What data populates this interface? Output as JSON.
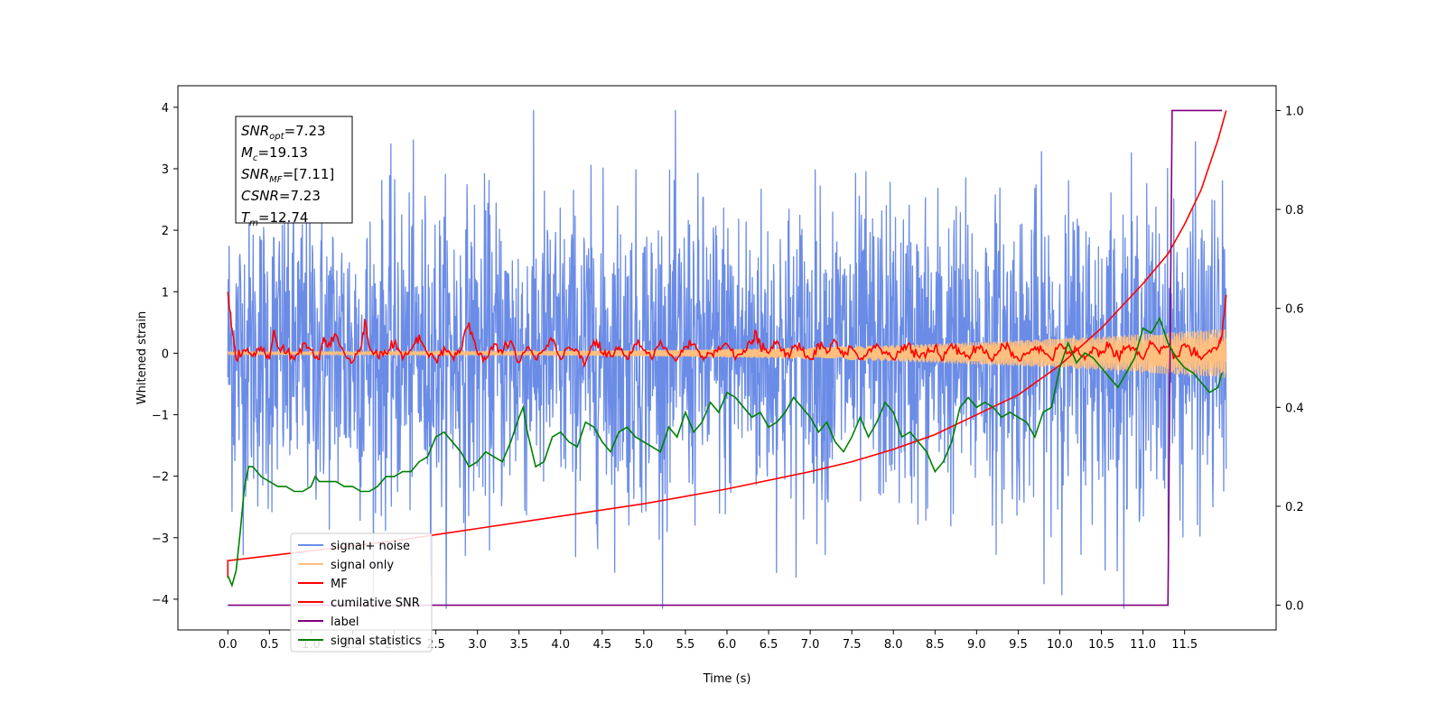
{
  "chart_data": {
    "type": "line",
    "title": "",
    "xlabel": "Time (s)",
    "ylabel": "Whitened strain",
    "xlim": [
      -0.6,
      12.6
    ],
    "ylim": [
      -4.5,
      4.35
    ],
    "y2lim": [
      -0.05,
      1.05
    ],
    "xticks": [
      "0.0",
      "0.5",
      "1.0",
      "1.5",
      "2.0",
      "2.5",
      "3.0",
      "3.5",
      "4.0",
      "4.5",
      "5.0",
      "5.5",
      "6.0",
      "6.5",
      "7.0",
      "7.5",
      "8.0",
      "8.5",
      "9.0",
      "9.5",
      "10.0",
      "10.5",
      "11.0",
      "11.5"
    ],
    "yticks": [
      "4",
      "3",
      "2",
      "1",
      "0",
      "−1",
      "−2",
      "−3",
      "−4"
    ],
    "y2ticks": [
      "1.0",
      "0.8",
      "0.6",
      "0.4",
      "0.2",
      "0.0"
    ],
    "annotation": {
      "lines": [
        {
          "base": "SNR",
          "sub": "opt",
          "value": "=7.23"
        },
        {
          "base": "M",
          "sub": "c",
          "value": "=19.13"
        },
        {
          "base": "SNR",
          "sub": "MF",
          "value": "=[7.11]"
        },
        {
          "base": "CSNR",
          "sub": "",
          "value": "=7.23"
        },
        {
          "base": "T",
          "sub": "m",
          "value": "=12.74"
        }
      ]
    },
    "legend": {
      "position": "lower-left",
      "entries": [
        {
          "label": "signal+ noise",
          "color": "#6b8ce6"
        },
        {
          "label": "signal only",
          "color": "#ffbf7f"
        },
        {
          "label": "MF",
          "color": "#ff0000"
        },
        {
          "label": "cumilative SNR",
          "color": "#ff0000"
        },
        {
          "label": "label",
          "color": "#800080"
        },
        {
          "label": "signal statistics",
          "color": "#008000"
        }
      ]
    },
    "series": [
      {
        "name": "signal+ noise",
        "axis": "left",
        "color": "#6b8ce6",
        "x_range": [
          0.0,
          12.0
        ],
        "mean": 0.0,
        "spread": 1.25,
        "min": -4.15,
        "max": 3.95
      },
      {
        "name": "signal only",
        "axis": "left",
        "color": "#ffbf7f",
        "x_range": [
          0.0,
          12.0
        ],
        "amplitude_start": 0.02,
        "amplitude_end": 0.4
      },
      {
        "name": "MF",
        "axis": "left",
        "color": "#ff0000",
        "x": [
          0.0,
          0.05,
          0.1,
          0.2,
          0.3,
          0.4,
          0.5,
          0.55,
          0.6,
          0.7,
          0.8,
          0.9,
          1.0,
          1.1,
          1.15,
          1.2,
          1.3,
          1.4,
          1.5,
          1.6,
          1.65,
          1.7,
          1.8,
          1.9,
          2.0,
          2.1,
          2.2,
          2.3,
          2.4,
          2.5,
          2.6,
          2.7,
          2.8,
          2.9,
          3.0,
          3.1,
          3.2,
          3.3,
          3.4,
          3.5,
          3.6,
          3.7,
          3.8,
          3.9,
          4.0,
          4.1,
          4.2,
          4.3,
          4.4,
          4.5,
          4.6,
          4.7,
          4.8,
          4.9,
          5.0,
          5.1,
          5.2,
          5.3,
          5.4,
          5.5,
          5.6,
          5.7,
          5.8,
          5.9,
          6.0,
          6.1,
          6.2,
          6.3,
          6.35,
          6.4,
          6.5,
          6.6,
          6.7,
          6.8,
          6.9,
          7.0,
          7.1,
          7.2,
          7.3,
          7.4,
          7.5,
          7.6,
          7.7,
          7.8,
          7.9,
          8.0,
          8.1,
          8.2,
          8.3,
          8.4,
          8.5,
          8.6,
          8.7,
          8.8,
          8.9,
          9.0,
          9.1,
          9.2,
          9.3,
          9.4,
          9.5,
          9.6,
          9.7,
          9.8,
          9.9,
          10.0,
          10.1,
          10.2,
          10.3,
          10.4,
          10.5,
          10.6,
          10.7,
          10.8,
          10.9,
          11.0,
          11.1,
          11.2,
          11.3,
          11.4,
          11.5,
          11.6,
          11.7,
          11.8,
          11.9,
          11.95,
          12.0
        ],
        "y": [
          1.0,
          0.4,
          -0.1,
          0.05,
          -0.05,
          0.1,
          -0.1,
          0.35,
          0.1,
          0.0,
          -0.1,
          0.15,
          0.05,
          -0.1,
          0.25,
          0.1,
          0.3,
          0.0,
          -0.15,
          0.1,
          0.55,
          0.1,
          -0.05,
          0.0,
          0.15,
          -0.1,
          0.05,
          0.3,
          0.0,
          -0.1,
          0.1,
          -0.05,
          0.05,
          0.5,
          0.0,
          -0.1,
          0.15,
          0.0,
          0.2,
          -0.15,
          0.1,
          -0.1,
          0.05,
          0.2,
          -0.1,
          0.1,
          0.05,
          -0.15,
          0.2,
          0.0,
          -0.05,
          0.1,
          -0.1,
          0.15,
          0.05,
          -0.1,
          0.2,
          0.0,
          -0.1,
          0.1,
          0.15,
          -0.05,
          0.0,
          0.1,
          0.15,
          -0.1,
          0.05,
          0.15,
          0.35,
          0.1,
          0.0,
          0.2,
          -0.05,
          0.1,
          0.05,
          -0.1,
          0.15,
          0.0,
          0.2,
          -0.05,
          0.1,
          -0.1,
          0.05,
          0.15,
          0.0,
          -0.1,
          0.1,
          0.15,
          -0.05,
          0.0,
          0.1,
          -0.1,
          0.15,
          0.0,
          -0.05,
          0.1,
          0.0,
          -0.1,
          0.15,
          0.05,
          -0.1,
          0.0,
          0.1,
          0.05,
          -0.1,
          0.15,
          0.0,
          0.05,
          -0.1,
          0.1,
          0.0,
          0.15,
          -0.05,
          0.1,
          0.05,
          -0.1,
          0.15,
          0.0,
          0.1,
          -0.05,
          0.15,
          0.0,
          -0.1,
          0.05,
          0.1,
          0.3,
          0.95
        ]
      },
      {
        "name": "cumilative SNR",
        "axis": "right",
        "color": "#ff0000",
        "x": [
          0.0,
          0.0,
          0.5,
          1.0,
          2.0,
          3.0,
          4.0,
          5.0,
          6.0,
          7.0,
          7.5,
          8.0,
          8.5,
          9.0,
          9.5,
          10.0,
          10.5,
          11.0,
          11.3,
          11.5,
          11.7,
          11.9,
          12.0
        ],
        "y": [
          0.055,
          0.09,
          0.1,
          0.11,
          0.13,
          0.155,
          0.18,
          0.205,
          0.235,
          0.27,
          0.29,
          0.315,
          0.345,
          0.385,
          0.425,
          0.485,
          0.56,
          0.65,
          0.71,
          0.77,
          0.84,
          0.94,
          1.0
        ]
      },
      {
        "name": "label",
        "axis": "right",
        "color": "#800080",
        "x": [
          0.0,
          11.3,
          11.35,
          11.95
        ],
        "y": [
          0.0,
          0.0,
          1.0,
          1.0
        ]
      },
      {
        "name": "signal statistics",
        "axis": "right",
        "color": "#008000",
        "x": [
          0.0,
          0.05,
          0.1,
          0.15,
          0.2,
          0.25,
          0.3,
          0.35,
          0.4,
          0.5,
          0.6,
          0.7,
          0.8,
          0.9,
          1.0,
          1.05,
          1.1,
          1.2,
          1.3,
          1.4,
          1.5,
          1.6,
          1.7,
          1.8,
          1.9,
          2.0,
          2.1,
          2.2,
          2.3,
          2.4,
          2.5,
          2.6,
          2.7,
          2.8,
          2.9,
          3.0,
          3.1,
          3.2,
          3.3,
          3.4,
          3.5,
          3.55,
          3.6,
          3.7,
          3.8,
          3.9,
          4.0,
          4.1,
          4.2,
          4.3,
          4.4,
          4.5,
          4.6,
          4.7,
          4.8,
          4.9,
          5.0,
          5.1,
          5.2,
          5.3,
          5.4,
          5.5,
          5.6,
          5.7,
          5.8,
          5.9,
          6.0,
          6.1,
          6.2,
          6.3,
          6.4,
          6.5,
          6.6,
          6.7,
          6.8,
          6.9,
          7.0,
          7.1,
          7.2,
          7.3,
          7.4,
          7.5,
          7.6,
          7.7,
          7.8,
          7.9,
          8.0,
          8.1,
          8.2,
          8.3,
          8.4,
          8.5,
          8.6,
          8.7,
          8.8,
          8.9,
          9.0,
          9.1,
          9.2,
          9.3,
          9.4,
          9.5,
          9.6,
          9.7,
          9.8,
          9.9,
          10.0,
          10.1,
          10.2,
          10.3,
          10.4,
          10.5,
          10.6,
          10.7,
          10.8,
          10.9,
          11.0,
          11.1,
          11.2,
          11.3,
          11.4,
          11.5,
          11.6,
          11.7,
          11.8,
          11.9,
          11.95
        ],
        "y": [
          0.06,
          0.04,
          0.07,
          0.15,
          0.24,
          0.28,
          0.28,
          0.27,
          0.26,
          0.25,
          0.24,
          0.24,
          0.23,
          0.23,
          0.24,
          0.26,
          0.25,
          0.25,
          0.25,
          0.24,
          0.24,
          0.23,
          0.23,
          0.24,
          0.26,
          0.26,
          0.27,
          0.27,
          0.29,
          0.3,
          0.34,
          0.35,
          0.33,
          0.31,
          0.28,
          0.29,
          0.31,
          0.3,
          0.29,
          0.33,
          0.38,
          0.4,
          0.35,
          0.28,
          0.29,
          0.34,
          0.35,
          0.33,
          0.32,
          0.37,
          0.36,
          0.33,
          0.31,
          0.35,
          0.36,
          0.34,
          0.33,
          0.32,
          0.31,
          0.36,
          0.34,
          0.39,
          0.35,
          0.37,
          0.41,
          0.39,
          0.43,
          0.42,
          0.4,
          0.38,
          0.39,
          0.36,
          0.37,
          0.39,
          0.42,
          0.4,
          0.38,
          0.35,
          0.37,
          0.33,
          0.31,
          0.34,
          0.38,
          0.34,
          0.37,
          0.41,
          0.39,
          0.34,
          0.35,
          0.33,
          0.31,
          0.27,
          0.29,
          0.33,
          0.4,
          0.42,
          0.4,
          0.41,
          0.4,
          0.38,
          0.39,
          0.38,
          0.37,
          0.34,
          0.39,
          0.4,
          0.48,
          0.53,
          0.49,
          0.51,
          0.5,
          0.48,
          0.46,
          0.44,
          0.47,
          0.5,
          0.56,
          0.55,
          0.58,
          0.53,
          0.5,
          0.48,
          0.47,
          0.45,
          0.43,
          0.44,
          0.47
        ]
      }
    ]
  }
}
